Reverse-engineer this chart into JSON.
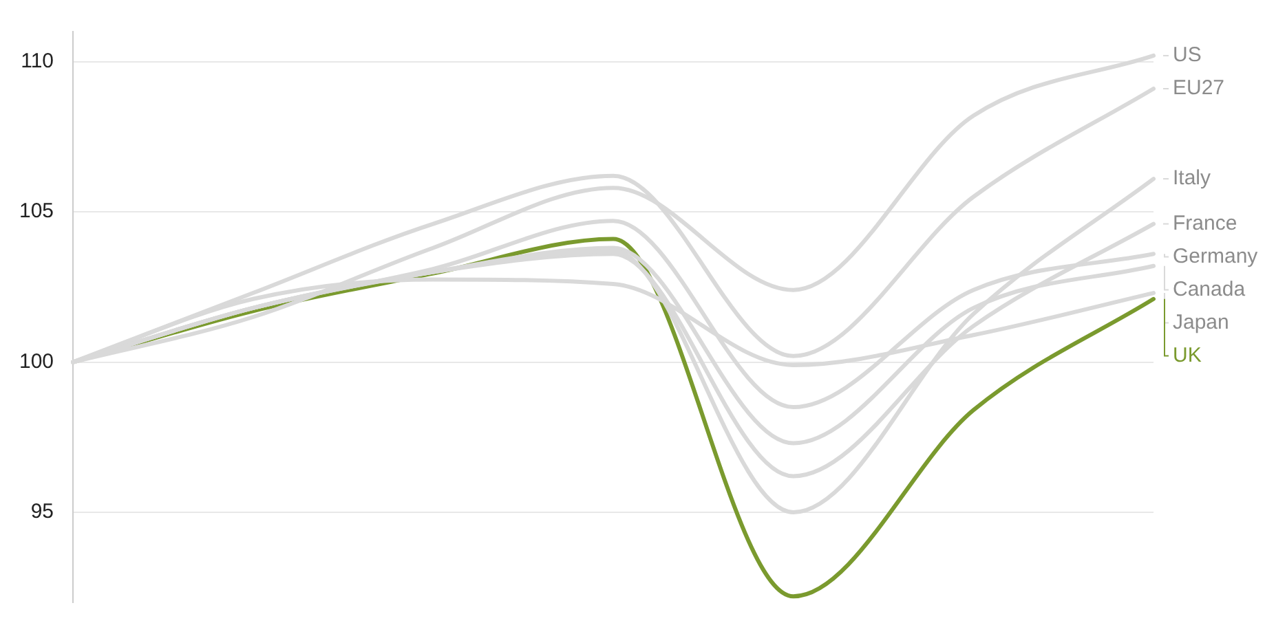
{
  "chart_data": {
    "type": "line",
    "categories": [
      null,
      null,
      null,
      null,
      null,
      null,
      null
    ],
    "ylim": [
      92,
      111
    ],
    "yticks": [
      95,
      100,
      105,
      110
    ],
    "grid": "y",
    "legend": "right",
    "tick_labels": "y",
    "marker": "none",
    "line_style": "solid",
    "series": [
      {
        "name": "US",
        "color": "#d9d9d9",
        "values": [
          100,
          101.5,
          103.8,
          105.8,
          102.4,
          108.2,
          110.2
        ]
      },
      {
        "name": "EU27",
        "color": "#d9d9d9",
        "values": [
          100,
          102.3,
          104.6,
          106.2,
          100.2,
          105.5,
          109.1
        ]
      },
      {
        "name": "Italy",
        "color": "#d9d9d9",
        "values": [
          100,
          101.8,
          103.0,
          103.7,
          95.0,
          101.6,
          106.1
        ]
      },
      {
        "name": "France",
        "color": "#d9d9d9",
        "values": [
          100,
          101.8,
          103.0,
          103.6,
          96.2,
          101.2,
          104.6
        ]
      },
      {
        "name": "Germany",
        "color": "#d9d9d9",
        "values": [
          100,
          101.8,
          103.1,
          104.7,
          98.5,
          102.4,
          103.6
        ]
      },
      {
        "name": "Canada",
        "color": "#d9d9d9",
        "values": [
          100,
          101.8,
          103.0,
          103.8,
          97.3,
          101.8,
          103.2
        ]
      },
      {
        "name": "Japan",
        "color": "#d9d9d9",
        "values": [
          100,
          102.1,
          102.75,
          102.6,
          99.9,
          100.9,
          102.3
        ]
      },
      {
        "name": "UK",
        "color": "#7a9a2e",
        "values": [
          100,
          101.7,
          102.95,
          104.1,
          92.2,
          98.4,
          102.1
        ]
      }
    ]
  }
}
